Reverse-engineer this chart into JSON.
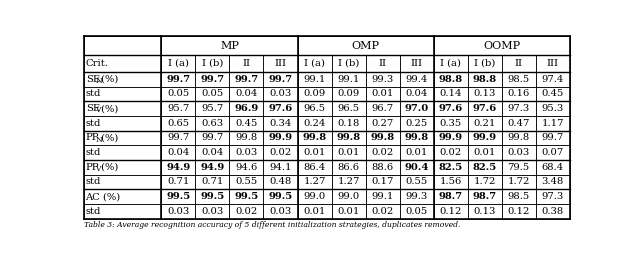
{
  "caption": "Table 3: Average recognition accuracy of 5 different initialization strategies, duplicates removed.",
  "col_groups": [
    {
      "name": "MP",
      "cols": [
        1,
        2,
        3,
        4
      ]
    },
    {
      "name": "OMP",
      "cols": [
        5,
        6,
        7,
        8
      ]
    },
    {
      "name": "OOMP",
      "cols": [
        9,
        10,
        11,
        12
      ]
    }
  ],
  "subheaders": [
    "Crit.",
    "I (a)",
    "I (b)",
    "II",
    "III",
    "I (a)",
    "I (b)",
    "II",
    "III",
    "I (a)",
    "I (b)",
    "II",
    "III"
  ],
  "rows": [
    {
      "label": "SE_N (%)",
      "label_sub": "N",
      "vals": [
        "99.7",
        "99.7",
        "99.7",
        "99.7",
        "99.1",
        "99.1",
        "99.3",
        "99.4",
        "98.8",
        "98.8",
        "98.5",
        "97.4"
      ],
      "bold": [
        true,
        true,
        true,
        true,
        false,
        false,
        false,
        false,
        true,
        true,
        false,
        false
      ],
      "is_std": false,
      "group_top": true
    },
    {
      "label": "std",
      "label_sub": null,
      "vals": [
        "0.05",
        "0.05",
        "0.04",
        "0.03",
        "0.09",
        "0.09",
        "0.01",
        "0.04",
        "0.14",
        "0.13",
        "0.16",
        "0.45"
      ],
      "bold": [
        false,
        false,
        false,
        false,
        false,
        false,
        false,
        false,
        false,
        false,
        false,
        false
      ],
      "is_std": true,
      "group_top": false
    },
    {
      "label": "SE_V (%)",
      "label_sub": "V",
      "vals": [
        "95.7",
        "95.7",
        "96.9",
        "97.6",
        "96.5",
        "96.5",
        "96.7",
        "97.0",
        "97.6",
        "97.6",
        "97.3",
        "95.3"
      ],
      "bold": [
        false,
        false,
        true,
        true,
        false,
        false,
        false,
        true,
        true,
        true,
        false,
        false
      ],
      "is_std": false,
      "group_top": true
    },
    {
      "label": "std",
      "label_sub": null,
      "vals": [
        "0.65",
        "0.63",
        "0.45",
        "0.34",
        "0.24",
        "0.18",
        "0.27",
        "0.25",
        "0.35",
        "0.21",
        "0.47",
        "1.17"
      ],
      "bold": [
        false,
        false,
        false,
        false,
        false,
        false,
        false,
        false,
        false,
        false,
        false,
        false
      ],
      "is_std": true,
      "group_top": false
    },
    {
      "label": "PP_N (%)",
      "label_sub": "N",
      "vals": [
        "99.7",
        "99.7",
        "99.8",
        "99.9",
        "99.8",
        "99.8",
        "99.8",
        "99.8",
        "99.9",
        "99.9",
        "99.8",
        "99.7"
      ],
      "bold": [
        false,
        false,
        false,
        true,
        true,
        true,
        true,
        true,
        true,
        true,
        false,
        false
      ],
      "is_std": false,
      "group_top": true
    },
    {
      "label": "std",
      "label_sub": null,
      "vals": [
        "0.04",
        "0.04",
        "0.03",
        "0.02",
        "0.01",
        "0.01",
        "0.02",
        "0.01",
        "0.02",
        "0.01",
        "0.03",
        "0.07"
      ],
      "bold": [
        false,
        false,
        false,
        false,
        false,
        false,
        false,
        false,
        false,
        false,
        false,
        false
      ],
      "is_std": true,
      "group_top": false
    },
    {
      "label": "PP_V (%)",
      "label_sub": "V",
      "vals": [
        "94.9",
        "94.9",
        "94.6",
        "94.1",
        "86.4",
        "86.6",
        "88.6",
        "90.4",
        "82.5",
        "82.5",
        "79.5",
        "68.4"
      ],
      "bold": [
        true,
        true,
        false,
        false,
        false,
        false,
        false,
        true,
        true,
        true,
        false,
        false
      ],
      "is_std": false,
      "group_top": true
    },
    {
      "label": "std",
      "label_sub": null,
      "vals": [
        "0.71",
        "0.71",
        "0.55",
        "0.48",
        "1.27",
        "1.27",
        "0.17",
        "0.55",
        "1.56",
        "1.72",
        "1.72",
        "3.48"
      ],
      "bold": [
        false,
        false,
        false,
        false,
        false,
        false,
        false,
        false,
        false,
        false,
        false,
        false
      ],
      "is_std": true,
      "group_top": false
    },
    {
      "label": "AC (%)",
      "label_sub": null,
      "vals": [
        "99.5",
        "99.5",
        "99.5",
        "99.5",
        "99.0",
        "99.0",
        "99.1",
        "99.3",
        "98.7",
        "98.7",
        "98.5",
        "97.3"
      ],
      "bold": [
        true,
        true,
        true,
        true,
        false,
        false,
        false,
        false,
        true,
        true,
        false,
        false
      ],
      "is_std": false,
      "group_top": true
    },
    {
      "label": "std",
      "label_sub": null,
      "vals": [
        "0.03",
        "0.03",
        "0.02",
        "0.03",
        "0.01",
        "0.01",
        "0.02",
        "0.05",
        "0.12",
        "0.13",
        "0.12",
        "0.38"
      ],
      "bold": [
        false,
        false,
        false,
        false,
        false,
        false,
        false,
        false,
        false,
        false,
        false,
        false
      ],
      "is_std": true,
      "group_top": false
    }
  ]
}
